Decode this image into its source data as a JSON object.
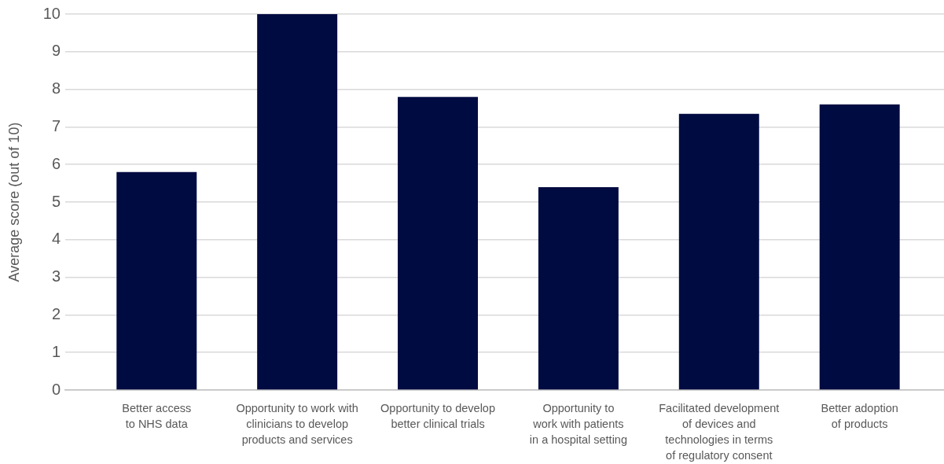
{
  "chart_data": {
    "type": "bar",
    "categories": [
      "Better access to NHS data",
      "Opportunity to work with clinicians to develop products and services",
      "Opportunity to develop better clinical trials",
      "Opportunity to work with patients in a hospital setting",
      "Facilitated development of devices and technologies in terms of regulatory consent",
      "Better adoption of products"
    ],
    "values": [
      5.8,
      10,
      7.8,
      5.4,
      7.35,
      7.6
    ],
    "color": "#000b41",
    "ylabel": "Average score (out of 10)",
    "ylim": [
      0,
      10
    ],
    "yticks": [
      0,
      1,
      2,
      3,
      4,
      5,
      6,
      7,
      8,
      9,
      10
    ],
    "grid": "y"
  }
}
